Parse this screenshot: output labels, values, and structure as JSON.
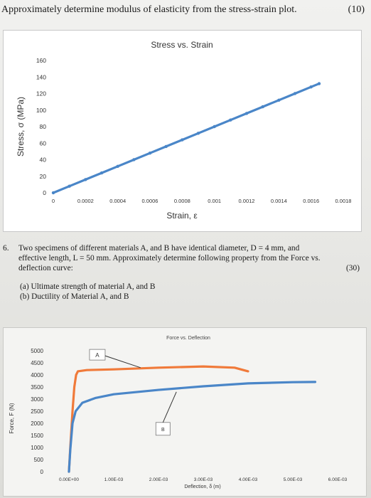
{
  "header": {
    "title": "Approximately determine modulus of elasticity from the stress-strain plot.",
    "points": "(10)"
  },
  "question6": {
    "number": "6.",
    "text_line1": "Two specimens of different materials A, and B have identical diameter, D = 4 mm, and",
    "text_line2": "effective length, L = 50 mm. Approximately determine following property from the Force vs.",
    "text_line3": "deflection curve:",
    "points": "(30)",
    "part_a": "(a) Ultimate strength of material A, and B",
    "part_b": "(b) Ductility of Material A, and B"
  },
  "chart_data": [
    {
      "type": "scatter",
      "title": "Stress vs. Strain",
      "xlabel": "Strain, ε",
      "ylabel": "Stress, σ (MPa)",
      "xlim": [
        0,
        0.0018
      ],
      "ylim": [
        0,
        160
      ],
      "x_ticks": [
        "0",
        "0.0002",
        "0.0004",
        "0.0006",
        "0.0008",
        "0.001",
        "0.0012",
        "0.0014",
        "0.0016",
        "0.0018"
      ],
      "y_ticks": [
        "0",
        "20",
        "40",
        "60",
        "80",
        "100",
        "120",
        "140",
        "160"
      ],
      "grid": false,
      "color": "#4a86c8",
      "series": [
        {
          "x": [
            0,
            0.0001,
            0.0002,
            0.0003,
            0.0004,
            0.0005,
            0.0006,
            0.0007,
            0.0008,
            0.0009,
            0.001,
            0.0011,
            0.0012,
            0.0013,
            0.0014,
            0.0015,
            0.0016,
            0.00165
          ],
          "y": [
            0,
            8,
            16,
            24,
            32,
            40,
            48,
            56,
            64,
            72,
            80,
            88,
            96,
            104,
            112,
            120,
            128,
            132
          ]
        }
      ]
    },
    {
      "type": "line",
      "title": "Force vs. Deflection",
      "xlabel": "Deflection, δ (m)",
      "ylabel": "Force, F (N)",
      "xlim": [
        0,
        0.006
      ],
      "ylim": [
        0,
        5000
      ],
      "x_ticks": [
        "0.00E+00",
        "1.00E-03",
        "2.00E-03",
        "3.00E-03",
        "4.00E-03",
        "5.00E-03",
        "6.00E-03"
      ],
      "y_ticks": [
        "0",
        "500",
        "1000",
        "1500",
        "2000",
        "2500",
        "3000",
        "3500",
        "4000",
        "4500",
        "5000"
      ],
      "grid": false,
      "annotations": [
        "A",
        "B"
      ],
      "series": [
        {
          "label": "A",
          "color": "#f07a3a",
          "x": [
            0,
            3e-05,
            8e-05,
            0.00012,
            0.00016,
            0.0002,
            0.0004,
            0.001,
            0.002,
            0.003,
            0.0037,
            0.004
          ],
          "y": [
            0,
            1000,
            2500,
            3500,
            4000,
            4150,
            4200,
            4230,
            4300,
            4350,
            4300,
            4150
          ]
        },
        {
          "label": "B",
          "color": "#4a86c8",
          "x": [
            0,
            3e-05,
            8e-05,
            0.00015,
            0.0003,
            0.0006,
            0.001,
            0.002,
            0.003,
            0.004,
            0.005,
            0.0055
          ],
          "y": [
            0,
            900,
            2000,
            2500,
            2850,
            3050,
            3200,
            3380,
            3530,
            3650,
            3700,
            3710
          ]
        }
      ]
    }
  ]
}
